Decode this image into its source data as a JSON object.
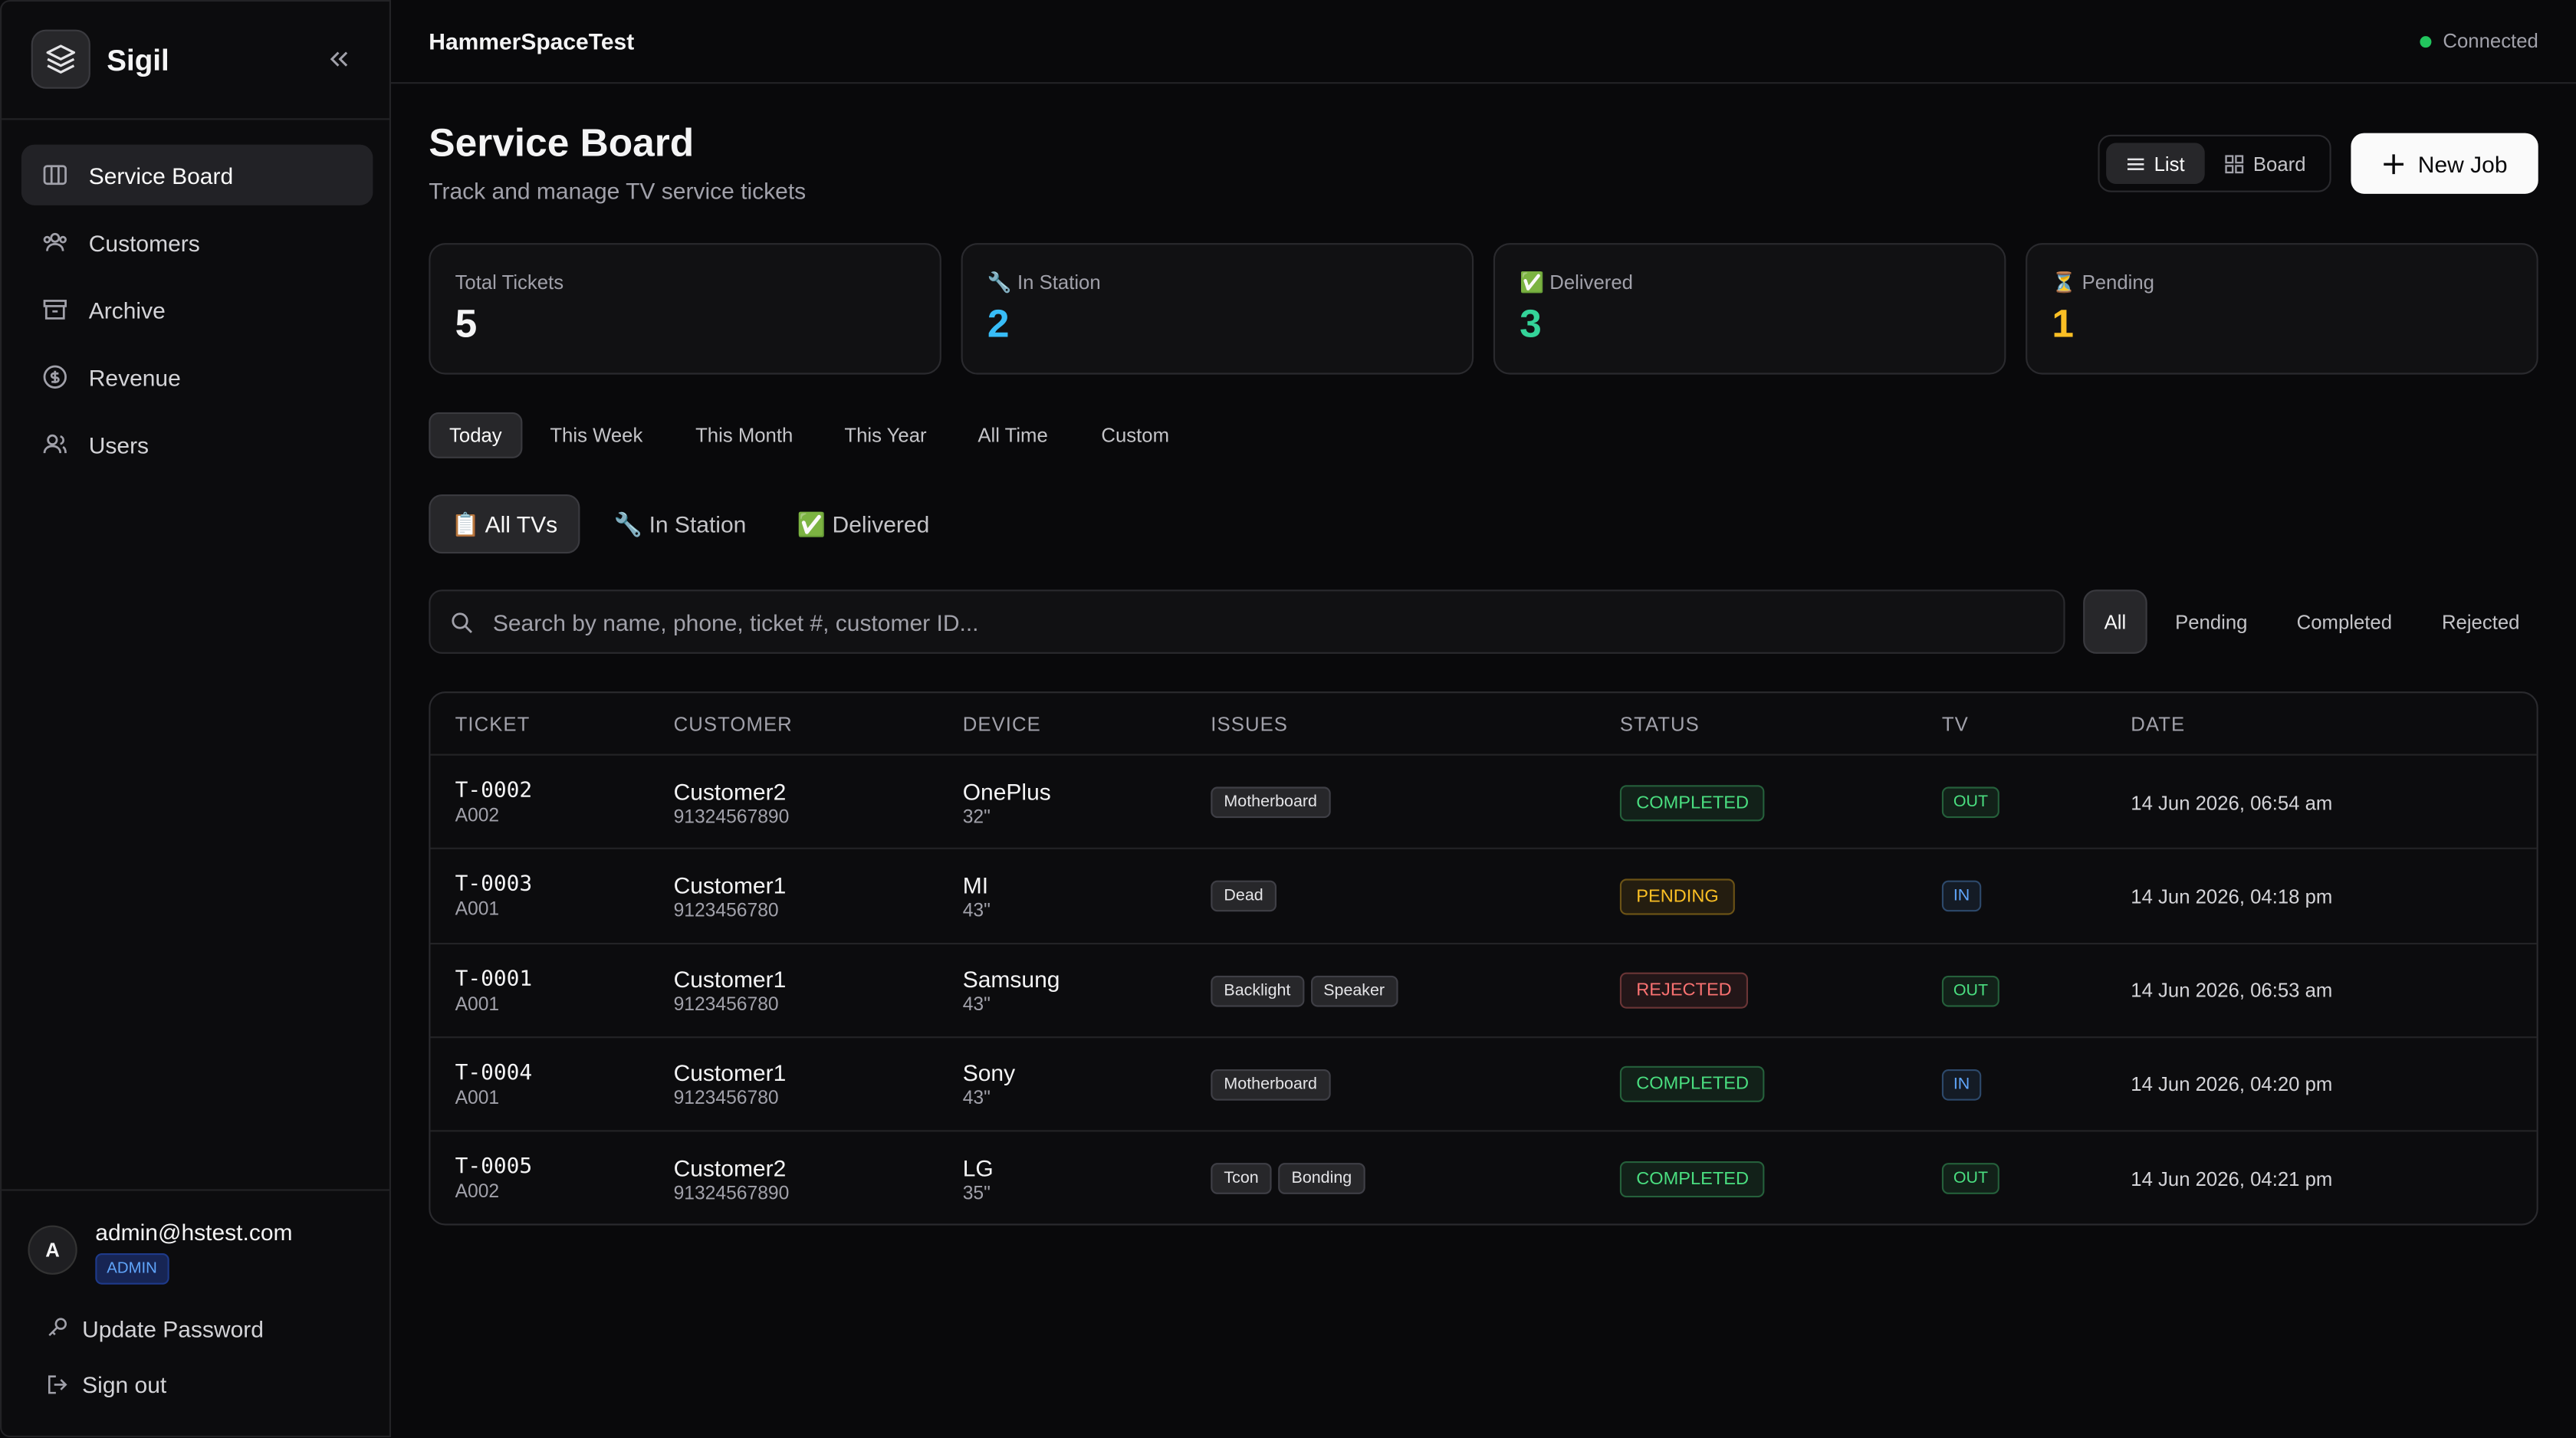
{
  "sidebar": {
    "brand": "Sigil",
    "nav": [
      "Service Board",
      "Customers",
      "Archive",
      "Revenue",
      "Users"
    ],
    "user": {
      "avatar": "A",
      "email": "admin@hstest.com",
      "role": "ADMIN"
    },
    "actions": [
      "Update Password",
      "Sign out"
    ]
  },
  "header": {
    "workspace": "HammerSpaceTest",
    "status": "Connected"
  },
  "page": {
    "title": "Service Board",
    "subtitle": "Track and manage TV service tickets",
    "views": [
      "List",
      "Board"
    ],
    "new_button": "New Job"
  },
  "stats": [
    {
      "label": "Total Tickets",
      "value": 5,
      "color": "#f4f4f5"
    },
    {
      "label": "🔧 In Station",
      "value": 2,
      "color": "#38bdf8"
    },
    {
      "label": "✅ Delivered",
      "value": 3,
      "color": "#34d399"
    },
    {
      "label": "⏳ Pending",
      "value": 1,
      "color": "#fbbf24"
    }
  ],
  "time_filters": [
    "Today",
    "This Week",
    "This Month",
    "This Year",
    "All Time",
    "Custom"
  ],
  "tv_tabs": [
    "📋 All TVs",
    "🔧 In Station",
    "✅ Delivered"
  ],
  "search_placeholder": "Search by name, phone, ticket #, customer ID...",
  "status_filters": [
    "All",
    "Pending",
    "Completed",
    "Rejected"
  ],
  "table": {
    "headers": [
      "TICKET",
      "CUSTOMER",
      "DEVICE",
      "ISSUES",
      "STATUS",
      "TV",
      "DATE"
    ],
    "rows": [
      {
        "ticket": "T-0002",
        "customer_id": "A002",
        "customer": "Customer2",
        "phone": "91324567890",
        "device": "OnePlus",
        "size": "32\"",
        "issues": [
          "Motherboard"
        ],
        "status": "COMPLETED",
        "status_color": "#4ade80",
        "tv": "OUT",
        "tv_color": "#4ade80",
        "date": "14 Jun 2026, 06:54 am"
      },
      {
        "ticket": "T-0003",
        "customer_id": "A001",
        "customer": "Customer1",
        "phone": "9123456780",
        "device": "MI",
        "size": "43\"",
        "issues": [
          "Dead"
        ],
        "status": "PENDING",
        "status_color": "#fbbf24",
        "tv": "IN",
        "tv_color": "#60a5fa",
        "date": "14 Jun 2026, 04:18 pm"
      },
      {
        "ticket": "T-0001",
        "customer_id": "A001",
        "customer": "Customer1",
        "phone": "9123456780",
        "device": "Samsung",
        "size": "43\"",
        "issues": [
          "Backlight",
          "Speaker"
        ],
        "status": "REJECTED",
        "status_color": "#f87171",
        "tv": "OUT",
        "tv_color": "#4ade80",
        "date": "14 Jun 2026, 06:53 am"
      },
      {
        "ticket": "T-0004",
        "customer_id": "A001",
        "customer": "Customer1",
        "phone": "9123456780",
        "device": "Sony",
        "size": "43\"",
        "issues": [
          "Motherboard"
        ],
        "status": "COMPLETED",
        "status_color": "#4ade80",
        "tv": "IN",
        "tv_color": "#60a5fa",
        "date": "14 Jun 2026, 04:20 pm"
      },
      {
        "ticket": "T-0005",
        "customer_id": "A002",
        "customer": "Customer2",
        "phone": "91324567890",
        "device": "LG",
        "size": "35\"",
        "issues": [
          "Tcon",
          "Bonding"
        ],
        "status": "COMPLETED",
        "status_color": "#4ade80",
        "tv": "OUT",
        "tv_color": "#4ade80",
        "date": "14 Jun 2026, 04:21 pm"
      }
    ]
  }
}
